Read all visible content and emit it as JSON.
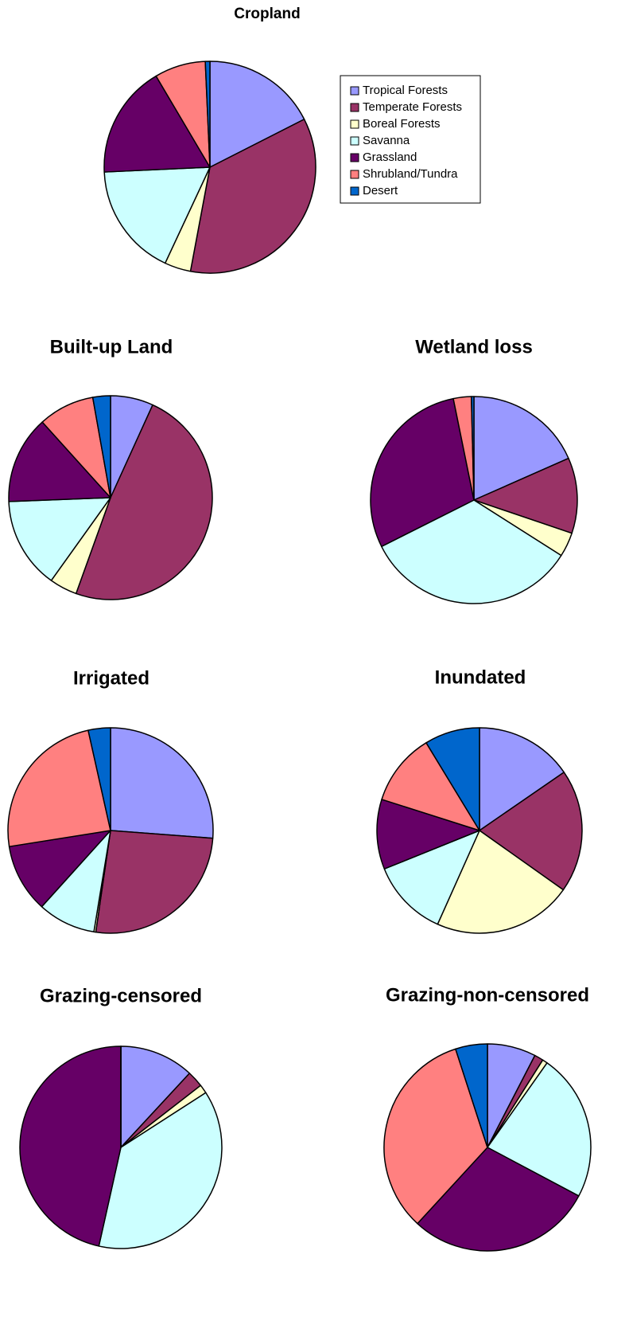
{
  "chart_data": [
    {
      "type": "pie",
      "title": "Cropland",
      "legend": "right",
      "categories": [
        "Tropical Forests",
        "Temperate Forests",
        "Boreal Forests",
        "Savanna",
        "Grassland",
        "Shrubland/Tundra",
        "Desert"
      ],
      "colors": [
        "#9999ff",
        "#993366",
        "#ffffcc",
        "#ccffff",
        "#660066",
        "#ff8080",
        "#0066cc"
      ],
      "values": [
        17.5,
        35.4,
        4,
        17.3,
        17.2,
        7.8,
        0.7
      ]
    },
    {
      "type": "pie",
      "title": "Built-up Land",
      "values": [
        6.8,
        48.7,
        4.4,
        14.5,
        13.9,
        8.9,
        2.8
      ]
    },
    {
      "type": "pie",
      "title": "Wetland loss",
      "values": [
        18.4,
        11.8,
        3.8,
        33.6,
        29.2,
        2.8,
        0.4
      ]
    },
    {
      "type": "pie",
      "title": "Irrigated",
      "values": [
        26.2,
        26.1,
        0.3,
        9.1,
        10.8,
        24,
        3.5
      ]
    },
    {
      "type": "pie",
      "title": "Inundated",
      "values": [
        15.4,
        19.4,
        21.9,
        12.2,
        11,
        11.4,
        8.7
      ]
    },
    {
      "type": "pie",
      "title": "Grazing-censored",
      "values": [
        11.9,
        2.6,
        1.4,
        37.6,
        46.5,
        0,
        0
      ]
    },
    {
      "type": "pie",
      "title": "Grazing-non-censored",
      "values": [
        7.6,
        1.4,
        0.8,
        23,
        29.1,
        33.2,
        5
      ]
    }
  ]
}
